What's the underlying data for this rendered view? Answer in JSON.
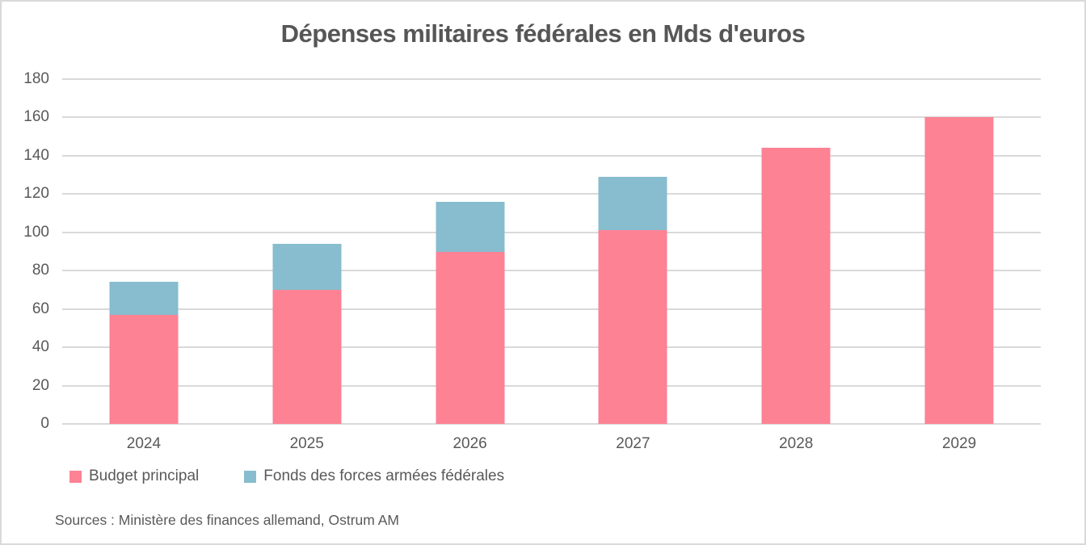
{
  "title": "Dépenses militaires fédérales en Mds d'euros",
  "source": "Sources : Ministère des finances allemand, Ostrum AM",
  "colors": {
    "series_budget": "#FC8294",
    "series_fonds": "#87BDCE",
    "grid": "#D9D9D9",
    "text": "#595959",
    "frame_border": "#D9D9D9"
  },
  "chart_data": {
    "type": "bar",
    "stacked": true,
    "title": "Dépenses militaires fédérales en Mds d'euros",
    "categories": [
      "2024",
      "2025",
      "2026",
      "2027",
      "2028",
      "2029"
    ],
    "series": [
      {
        "name": "Budget principal",
        "color": "#FC8294",
        "values": [
          57,
          70,
          90,
          101,
          144,
          160
        ]
      },
      {
        "name": "Fonds des forces armées fédérales",
        "color": "#87BDCE",
        "values": [
          17,
          24,
          26,
          28,
          0,
          0
        ]
      }
    ],
    "stacked_totals": [
      74,
      94,
      116,
      129,
      144,
      160
    ],
    "xlabel": "",
    "ylabel": "",
    "ylim": [
      0,
      180
    ],
    "yticks": [
      0,
      20,
      40,
      60,
      80,
      100,
      120,
      140,
      160,
      180
    ],
    "grid": true,
    "legend_position": "bottom-left"
  }
}
